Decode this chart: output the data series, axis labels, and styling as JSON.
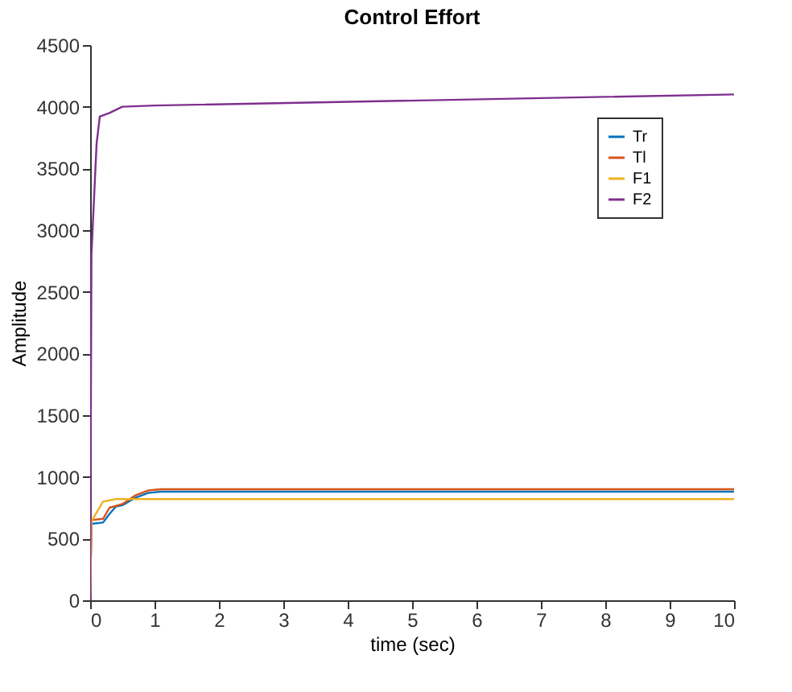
{
  "chart_data": {
    "type": "line",
    "title": "Control Effort",
    "xlabel": "time (sec)",
    "ylabel": "Amplitude",
    "xlim": [
      0,
      10
    ],
    "xticks": [
      0,
      1,
      2,
      3,
      4,
      5,
      6,
      7,
      8,
      9,
      10
    ],
    "ylim": [
      0,
      4500
    ],
    "yticks": [
      0,
      500,
      1000,
      1500,
      2000,
      2500,
      3000,
      3500,
      4000,
      4500
    ],
    "grid": false,
    "legend": "top right",
    "marker": "none",
    "line_style": "solid",
    "series": [
      {
        "name": "Tr",
        "color": "#0072bd",
        "x": [
          0,
          0.02,
          0.2,
          0.3,
          0.4,
          0.5,
          0.7,
          0.9,
          1.1,
          10
        ],
        "values": [
          0,
          620,
          630,
          700,
          760,
          770,
          830,
          870,
          880,
          880
        ]
      },
      {
        "name": "Tl",
        "color": "#d95319",
        "x": [
          0,
          0.02,
          0.2,
          0.3,
          0.5,
          0.7,
          0.9,
          1.1,
          10
        ],
        "values": [
          0,
          650,
          660,
          750,
          780,
          850,
          890,
          900,
          900
        ]
      },
      {
        "name": "F1",
        "color": "#edb120",
        "x": [
          0,
          0.02,
          0.2,
          0.4,
          10
        ],
        "values": [
          0,
          640,
          800,
          820,
          820
        ]
      },
      {
        "name": "F2",
        "color": "#7e2f8e",
        "x": [
          0,
          0.02,
          0.1,
          0.15,
          0.3,
          0.5,
          1,
          10
        ],
        "values": [
          0,
          2800,
          3700,
          3920,
          3950,
          4000,
          4010,
          4100
        ]
      }
    ]
  }
}
